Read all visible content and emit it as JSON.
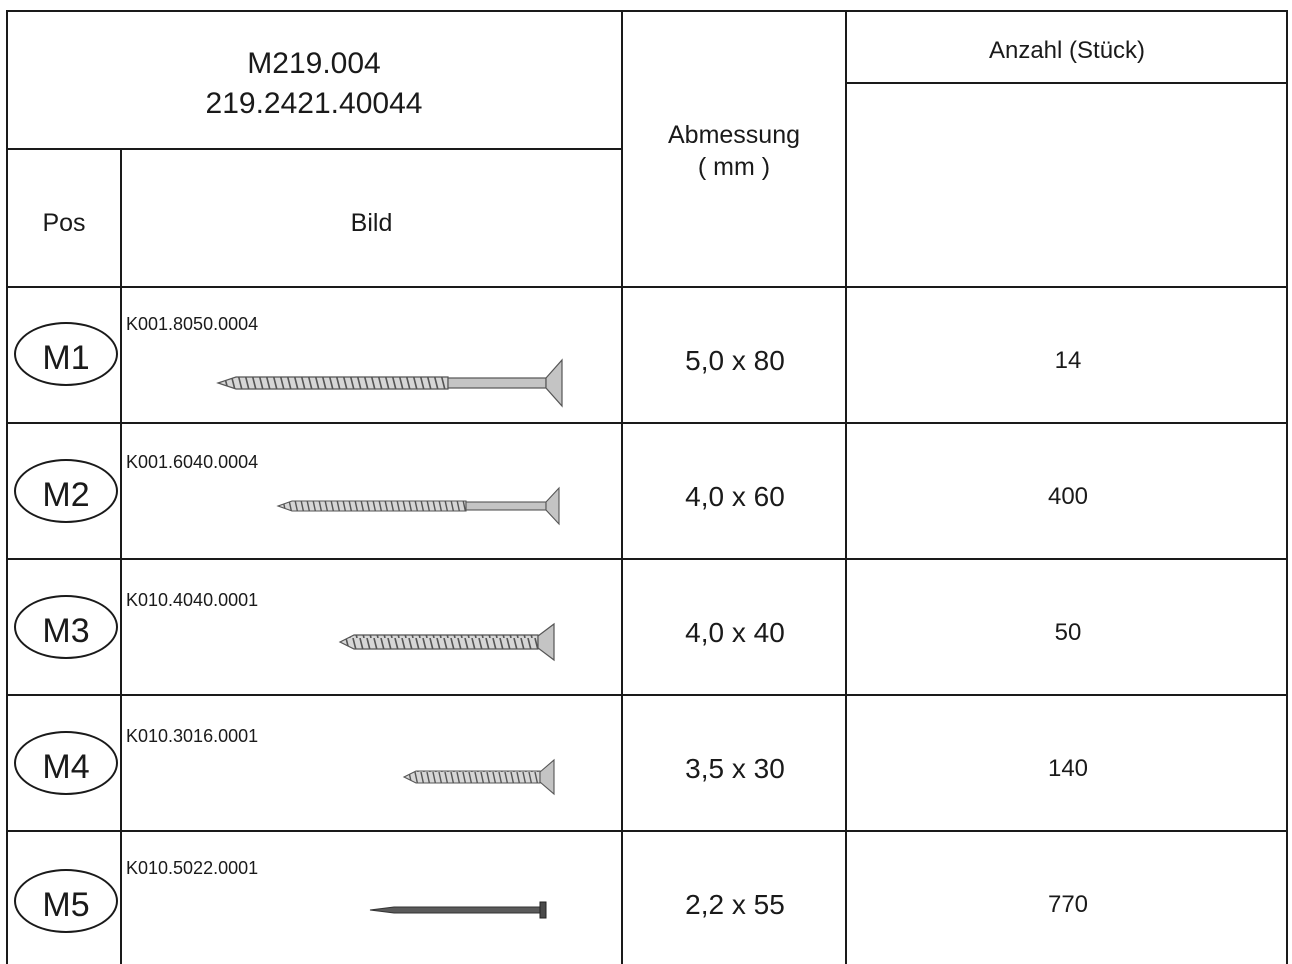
{
  "header": {
    "code_line1": "M219.004",
    "code_line2": "219.2421.40044",
    "pos_label": "Pos",
    "bild_label": "Bild",
    "abmessung_label": "Abmessung",
    "abmessung_unit": "( mm )",
    "anzahl_label": "Anzahl (Stück)"
  },
  "rows": [
    {
      "pos": "M1",
      "article": "K001.8050.0004",
      "dimension": "5,0 x 80",
      "quantity": "14",
      "part_icon": "screw-icon"
    },
    {
      "pos": "M2",
      "article": "K001.6040.0004",
      "dimension": "4,0 x 60",
      "quantity": "400",
      "part_icon": "screw-icon"
    },
    {
      "pos": "M3",
      "article": "K010.4040.0001",
      "dimension": "4,0 x 40",
      "quantity": "50",
      "part_icon": "screw-icon"
    },
    {
      "pos": "M4",
      "article": "K010.3016.0001",
      "dimension": "3,5 x 30",
      "quantity": "140",
      "part_icon": "screw-icon"
    },
    {
      "pos": "M5",
      "article": "K010.5022.0001",
      "dimension": "2,2 x 55",
      "quantity": "770",
      "part_icon": "nail-icon"
    }
  ]
}
